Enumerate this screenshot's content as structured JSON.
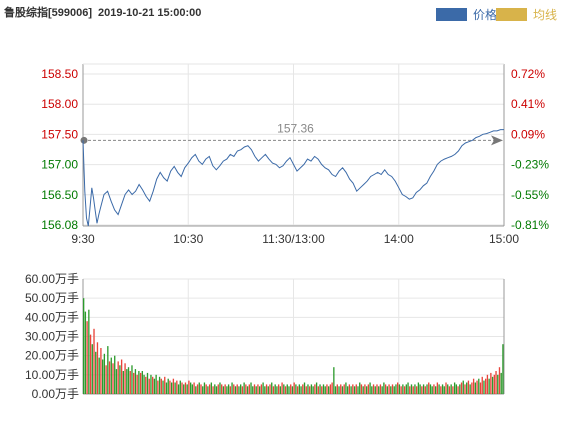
{
  "header": {
    "name": "鲁股综指[599006]",
    "datetime": "2019-10-21 15:00:00"
  },
  "legend": [
    {
      "label": "价格",
      "color": "#3b6aa8"
    },
    {
      "label": "均线",
      "color": "#d8b34a"
    }
  ],
  "colors": {
    "price_line": "#3b6aa8",
    "up_text": "#cc0000",
    "down_text": "#007a00",
    "vol_up": "#e8443a",
    "vol_down": "#2c9a2c",
    "grid": "#e6e6e6",
    "axis": "#999999"
  },
  "chart_data": [
    {
      "type": "line",
      "name": "price",
      "prev_close": 157.36,
      "prev_close_label": "157.36",
      "ylim": [
        156.08,
        158.5
      ],
      "y_ticks_left": [
        "158.50",
        "158.00",
        "157.50",
        "157.00",
        "156.50",
        "156.08"
      ],
      "y_ticks_right": [
        "0.72%",
        "0.41%",
        "0.09%",
        "-0.23%",
        "-0.55%",
        "-0.81%"
      ],
      "x_ticks": [
        "9:30",
        "10:30",
        "11:30/13:00",
        "14:00",
        "15:00"
      ],
      "x_range_minutes": [
        0,
        240
      ],
      "series_x": [
        0,
        1,
        2,
        3,
        4,
        5,
        6,
        7,
        8,
        9,
        10,
        12,
        14,
        16,
        18,
        20,
        22,
        24,
        26,
        28,
        30,
        32,
        34,
        36,
        38,
        40,
        42,
        44,
        46,
        48,
        50,
        52,
        54,
        56,
        58,
        60,
        62,
        64,
        66,
        68,
        70,
        72,
        74,
        76,
        78,
        80,
        82,
        84,
        86,
        88,
        90,
        92,
        94,
        96,
        98,
        100,
        102,
        104,
        106,
        108,
        110,
        112,
        114,
        116,
        118,
        120,
        122,
        124,
        126,
        128,
        130,
        132,
        134,
        136,
        138,
        140,
        142,
        144,
        146,
        148,
        150,
        152,
        154,
        156,
        158,
        160,
        162,
        164,
        166,
        168,
        170,
        172,
        174,
        176,
        178,
        180,
        182,
        184,
        186,
        188,
        190,
        192,
        194,
        196,
        198,
        200,
        202,
        204,
        206,
        208,
        210,
        212,
        214,
        216,
        218,
        220,
        222,
        224,
        226,
        228,
        230,
        232,
        234,
        236,
        238,
        240
      ],
      "series_y": [
        157.36,
        156.6,
        156.2,
        156.08,
        156.35,
        156.65,
        156.5,
        156.3,
        156.12,
        156.25,
        156.35,
        156.55,
        156.6,
        156.45,
        156.32,
        156.25,
        156.4,
        156.55,
        156.62,
        156.55,
        156.6,
        156.7,
        156.62,
        156.52,
        156.45,
        156.6,
        156.78,
        156.88,
        156.8,
        156.75,
        156.9,
        156.97,
        156.88,
        156.82,
        156.95,
        157.02,
        157.1,
        157.15,
        157.05,
        157.0,
        157.08,
        157.12,
        156.98,
        156.92,
        156.98,
        157.05,
        157.08,
        157.15,
        157.12,
        157.2,
        157.22,
        157.26,
        157.28,
        157.22,
        157.12,
        157.05,
        157.1,
        157.15,
        157.08,
        157.02,
        157.0,
        156.95,
        156.98,
        157.05,
        157.1,
        157.0,
        156.9,
        156.95,
        157.0,
        157.08,
        157.05,
        157.12,
        157.08,
        157.0,
        156.95,
        156.92,
        156.85,
        156.82,
        156.9,
        156.95,
        156.88,
        156.78,
        156.72,
        156.6,
        156.65,
        156.7,
        156.75,
        156.82,
        156.85,
        156.88,
        156.85,
        156.92,
        156.85,
        156.82,
        156.75,
        156.65,
        156.55,
        156.52,
        156.48,
        156.5,
        156.58,
        156.62,
        156.68,
        156.72,
        156.82,
        156.9,
        157.0,
        157.05,
        157.08,
        157.1,
        157.12,
        157.15,
        157.2,
        157.28,
        157.32,
        157.34,
        157.36,
        157.4,
        157.42,
        157.45,
        157.46,
        157.48,
        157.5,
        157.5,
        157.52,
        157.52
      ]
    },
    {
      "type": "bar",
      "name": "volume",
      "unit": "万手",
      "ylim": [
        0,
        60
      ],
      "y_ticks": [
        "60.00万手",
        "50.00万手",
        "40.00万手",
        "30.00万手",
        "20.00万手",
        "10.00万手",
        "0.00万手"
      ],
      "bar_values": [
        50,
        43,
        38,
        44,
        31,
        26,
        34,
        22,
        27,
        19,
        24,
        18,
        21,
        15,
        25,
        17,
        19,
        16,
        20,
        13,
        17,
        15,
        18,
        12,
        16,
        13,
        14,
        12,
        15,
        11,
        13,
        10,
        12,
        11,
        12,
        10,
        9,
        11,
        8,
        10,
        9,
        8,
        10,
        7,
        9,
        8,
        7,
        9,
        6,
        8,
        7,
        6,
        8,
        6,
        7,
        5,
        7,
        6,
        5,
        6,
        5,
        7,
        6,
        5,
        6,
        4,
        5,
        6,
        5,
        4,
        6,
        5,
        4,
        5,
        6,
        4,
        5,
        4,
        5,
        6,
        5,
        4,
        5,
        4,
        5,
        4,
        6,
        5,
        4,
        5,
        4,
        5,
        4,
        6,
        5,
        4,
        5,
        6,
        4,
        5,
        4,
        5,
        4,
        5,
        6,
        4,
        5,
        4,
        5,
        6,
        4,
        5,
        4,
        5,
        4,
        6,
        5,
        4,
        5,
        4,
        5,
        4,
        6,
        5,
        4,
        5,
        4,
        5,
        6,
        4,
        5,
        4,
        5,
        4,
        5,
        6,
        4,
        5,
        4,
        5,
        4,
        5,
        4,
        5,
        6,
        14,
        4,
        5,
        4,
        5,
        4,
        5,
        6,
        4,
        5,
        4,
        5,
        4,
        5,
        4,
        6,
        5,
        4,
        5,
        4,
        5,
        6,
        4,
        5,
        4,
        5,
        4,
        5,
        4,
        6,
        5,
        4,
        5,
        4,
        5,
        4,
        5,
        6,
        5,
        4,
        5,
        4,
        5,
        6,
        4,
        5,
        4,
        5,
        4,
        6,
        5,
        4,
        5,
        4,
        5,
        6,
        5,
        4,
        5,
        4,
        6,
        5,
        4,
        5,
        4,
        6,
        5,
        4,
        5,
        4,
        6,
        5,
        4,
        5,
        6,
        7,
        5,
        6,
        7,
        5,
        6,
        8,
        6,
        7,
        8,
        6,
        9,
        7,
        8,
        10,
        8,
        11,
        9,
        10,
        12,
        10,
        14,
        11,
        26
      ],
      "bar_up": [
        false,
        false,
        true,
        false,
        true,
        false,
        true,
        false,
        true,
        false,
        true,
        false,
        false,
        true,
        false,
        true,
        false,
        true,
        false,
        false,
        true,
        false,
        true,
        false,
        true,
        false,
        false,
        true,
        false,
        true,
        false,
        true,
        false,
        true,
        false,
        false,
        true,
        false,
        true,
        false,
        true,
        false,
        false,
        true,
        false,
        true,
        false,
        true,
        false,
        false,
        true,
        false,
        true,
        false,
        true,
        false,
        false,
        true,
        false,
        true,
        false,
        true,
        false,
        false,
        true,
        false,
        true,
        false,
        true,
        false,
        false,
        true,
        false,
        true,
        false,
        true,
        false,
        false,
        true,
        false,
        true,
        false,
        true,
        false,
        false,
        true,
        false,
        true,
        false,
        true,
        false,
        false,
        true,
        false,
        true,
        false,
        true,
        false,
        false,
        true,
        false,
        true,
        false,
        true,
        false,
        false,
        true,
        false,
        true,
        false,
        true,
        false,
        false,
        true,
        false,
        true,
        false,
        true,
        false,
        false,
        true,
        false,
        true,
        false,
        true,
        false,
        false,
        true,
        false,
        true,
        false,
        true,
        false,
        false,
        true,
        false,
        true,
        false,
        true,
        false,
        false,
        true,
        false,
        true,
        true,
        false,
        false,
        true,
        false,
        true,
        false,
        true,
        false,
        false,
        true,
        false,
        true,
        false,
        true,
        false,
        false,
        true,
        false,
        true,
        false,
        true,
        false,
        false,
        true,
        false,
        true,
        false,
        true,
        false,
        false,
        true,
        false,
        true,
        false,
        true,
        false,
        false,
        true,
        false,
        true,
        false,
        true,
        false,
        false,
        true,
        false,
        true,
        false,
        true,
        false,
        false,
        true,
        false,
        true,
        false,
        true,
        false,
        false,
        true,
        false,
        true,
        false,
        true,
        false,
        false,
        true,
        false,
        true,
        false,
        true,
        false,
        false,
        true,
        false,
        true,
        false,
        true,
        false,
        true,
        false,
        true,
        true,
        false,
        true,
        false,
        true,
        true,
        false,
        true,
        true,
        false,
        true,
        false,
        true,
        true,
        false,
        true,
        false
      ]
    }
  ]
}
